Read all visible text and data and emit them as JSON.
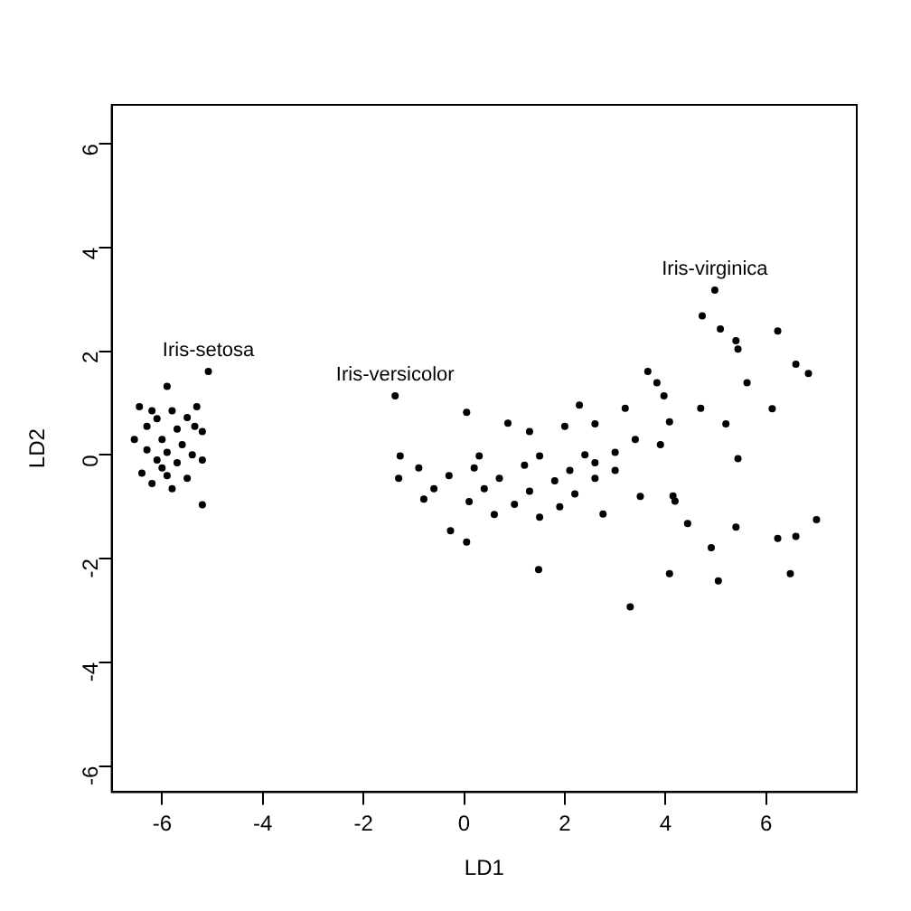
{
  "chart_data": {
    "type": "scatter",
    "xlabel": "LD1",
    "ylabel": "LD2",
    "xlim": [
      -7,
      7.8
    ],
    "ylim": [
      -6.5,
      6.75
    ],
    "xticks": [
      -6,
      -4,
      -2,
      0,
      2,
      4,
      6
    ],
    "yticks": [
      -6,
      -4,
      -2,
      0,
      2,
      4,
      6
    ],
    "grid": false,
    "legend": false,
    "marker": "circle",
    "series": [
      {
        "name": "Iris-setosa",
        "color": "#000000",
        "x": [
          -5.08,
          -5.9,
          -6.45,
          -5.31,
          -5.8,
          -6.1,
          -5.5,
          -6.3,
          -5.7,
          -5.2,
          -6.55,
          -6.0,
          -5.6,
          -6.3,
          -5.9,
          -5.4,
          -6.1,
          -5.7,
          -5.2,
          -6.4,
          -5.9,
          -5.5,
          -6.2,
          -5.8,
          -5.2,
          -6.0,
          -5.35,
          -6.2
        ],
        "values": [
          1.61,
          1.32,
          0.93,
          0.93,
          0.85,
          0.7,
          0.72,
          0.55,
          0.5,
          0.45,
          0.3,
          0.3,
          0.2,
          0.1,
          0.05,
          0.0,
          -0.1,
          -0.15,
          -0.1,
          -0.35,
          -0.4,
          -0.45,
          -0.55,
          -0.65,
          -0.96,
          -0.25,
          0.55,
          0.85
        ]
      },
      {
        "name": "Iris-versicolor",
        "color": "#000000",
        "x": [
          -1.37,
          0.05,
          0.87,
          1.3,
          2.0,
          -1.27,
          0.3,
          1.5,
          2.4,
          -0.9,
          0.2,
          1.2,
          2.1,
          -1.3,
          -0.3,
          0.7,
          1.8,
          2.6,
          -0.6,
          0.4,
          1.3,
          2.2,
          -0.8,
          0.1,
          1.0,
          1.9,
          0.6,
          1.5,
          0.05,
          -0.27,
          1.48,
          2.6,
          3.0
        ],
        "values": [
          1.14,
          0.82,
          0.61,
          0.45,
          0.55,
          -0.02,
          -0.02,
          -0.02,
          0.0,
          -0.25,
          -0.25,
          -0.2,
          -0.3,
          -0.45,
          -0.4,
          -0.45,
          -0.5,
          -0.45,
          -0.65,
          -0.65,
          -0.7,
          -0.75,
          -0.85,
          -0.9,
          -0.95,
          -1.0,
          -1.15,
          -1.2,
          -1.68,
          -1.46,
          -2.21,
          -0.15,
          -0.3
        ]
      },
      {
        "name": "Iris-virginica",
        "color": "#000000",
        "x": [
          4.98,
          4.73,
          5.09,
          6.23,
          5.4,
          5.44,
          6.59,
          6.84,
          3.65,
          3.83,
          5.62,
          3.97,
          2.29,
          3.2,
          4.7,
          6.12,
          4.08,
          2.6,
          5.2,
          3.4,
          5.44,
          3.0,
          4.15,
          4.19,
          2.76,
          4.44,
          5.4,
          7.0,
          6.59,
          6.23,
          4.91,
          4.08,
          5.05,
          6.48,
          3.3,
          3.5,
          3.9
        ],
        "values": [
          3.18,
          2.68,
          2.43,
          2.39,
          2.2,
          2.04,
          1.75,
          1.57,
          1.61,
          1.39,
          1.39,
          1.14,
          0.96,
          0.9,
          0.9,
          0.89,
          0.64,
          0.6,
          0.6,
          0.3,
          -0.07,
          0.05,
          -0.79,
          -0.89,
          -1.14,
          -1.32,
          -1.39,
          -1.25,
          -1.57,
          -1.61,
          -1.79,
          -2.29,
          -2.43,
          -2.29,
          -2.93,
          -0.8,
          0.2
        ]
      }
    ]
  }
}
